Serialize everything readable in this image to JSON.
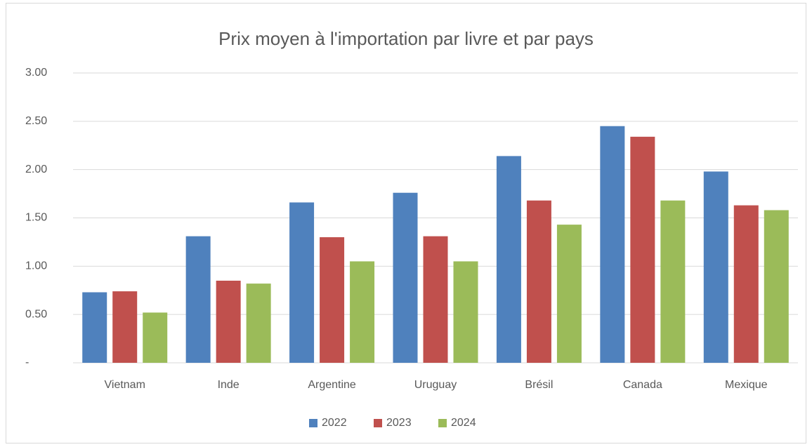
{
  "chart_data": {
    "type": "bar",
    "title": "Prix moyen à l'importation par livre et par pays",
    "categories": [
      "Vietnam",
      "Inde",
      "Argentine",
      "Uruguay",
      "Brésil",
      "Canada",
      "Mexique"
    ],
    "series": [
      {
        "name": "2022",
        "color": "#4f81bd",
        "values": [
          0.73,
          1.31,
          1.66,
          1.76,
          2.14,
          2.45,
          1.98
        ]
      },
      {
        "name": "2023",
        "color": "#c0504d",
        "values": [
          0.74,
          0.85,
          1.3,
          1.31,
          1.68,
          2.34,
          1.63
        ]
      },
      {
        "name": "2024",
        "color": "#9bbb59",
        "values": [
          0.52,
          0.82,
          1.05,
          1.05,
          1.43,
          1.68,
          1.58
        ]
      }
    ],
    "ylim": [
      0,
      3
    ],
    "yticks": [
      {
        "value": 0,
        "label": "-"
      },
      {
        "value": 0.5,
        "label": "0.50"
      },
      {
        "value": 1,
        "label": "1.00"
      },
      {
        "value": 1.5,
        "label": "1.50"
      },
      {
        "value": 2,
        "label": "2.00"
      },
      {
        "value": 2.5,
        "label": "2.50"
      },
      {
        "value": 3,
        "label": "3.00"
      }
    ],
    "grid": true,
    "legend": "bottom"
  }
}
